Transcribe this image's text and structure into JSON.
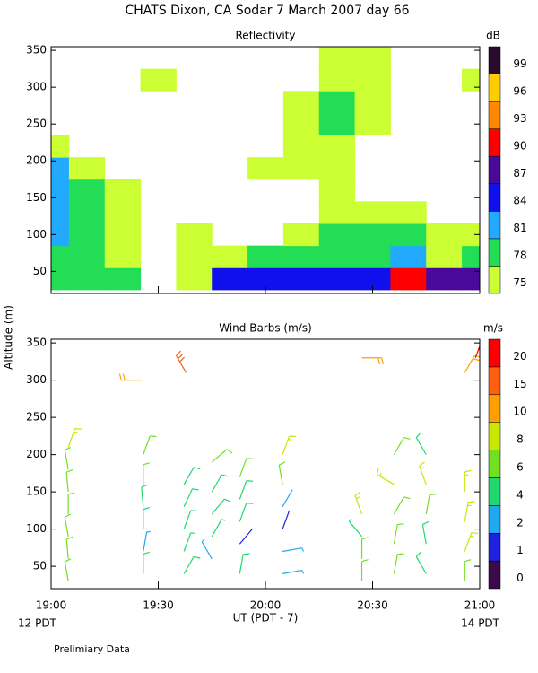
{
  "title": "CHATS Dixon, CA  Sodar   7 March 2007  day  66",
  "y_label": "Altitude (m)",
  "x_label": "UT  (PDT - 7)",
  "x_start_label": "12 PDT",
  "x_end_label": "14 PDT",
  "footnote": "Prelimiary Data",
  "chart_data": [
    {
      "type": "contour",
      "title": "Reflectivity",
      "xlim": [
        19,
        21
      ],
      "xticks": [
        19,
        19.5,
        20,
        20.5,
        21
      ],
      "ylim": [
        20,
        355
      ],
      "yticks": [
        50,
        100,
        150,
        200,
        250,
        300,
        350
      ],
      "colorbar": {
        "unit": "dB",
        "levels": [
          75,
          78,
          81,
          84,
          87,
          90,
          93,
          96,
          99
        ],
        "colors": [
          "#ccff33",
          "#22dd55",
          "#22aaff",
          "#1010ee",
          "#4a0a99",
          "#ff0000",
          "#ff8800",
          "#ffcc00",
          "#2a0a2a"
        ]
      },
      "x": [
        19,
        19.1667,
        19.3333,
        19.5,
        19.6667,
        19.8333,
        20,
        20.1667,
        20.3333,
        20.5,
        20.6667,
        20.8333,
        21
      ],
      "y": [
        40,
        70,
        100,
        130,
        160,
        190,
        220,
        250,
        280,
        310,
        340
      ],
      "z": [
        [
          78,
          78,
          78,
          null,
          75,
          84,
          84,
          84,
          84,
          84,
          90,
          87,
          87
        ],
        [
          78,
          78,
          75,
          null,
          75,
          75,
          78,
          78,
          78,
          78,
          81,
          75,
          78
        ],
        [
          81,
          78,
          75,
          null,
          75,
          null,
          null,
          75,
          78,
          78,
          78,
          75,
          75
        ],
        [
          81,
          78,
          75,
          null,
          null,
          null,
          null,
          null,
          75,
          75,
          75,
          null,
          null
        ],
        [
          81,
          78,
          75,
          null,
          null,
          null,
          null,
          null,
          75,
          null,
          null,
          null,
          null
        ],
        [
          81,
          75,
          null,
          null,
          null,
          null,
          75,
          75,
          75,
          null,
          null,
          null,
          null
        ],
        [
          75,
          null,
          null,
          null,
          null,
          null,
          null,
          75,
          75,
          null,
          null,
          null,
          null
        ],
        [
          null,
          null,
          null,
          null,
          null,
          null,
          null,
          75,
          78,
          75,
          null,
          null,
          null
        ],
        [
          null,
          null,
          null,
          null,
          null,
          null,
          null,
          75,
          78,
          75,
          null,
          null,
          null
        ],
        [
          null,
          null,
          null,
          75,
          null,
          null,
          null,
          null,
          75,
          75,
          null,
          null,
          75
        ],
        [
          null,
          null,
          null,
          null,
          null,
          null,
          null,
          null,
          75,
          75,
          null,
          null,
          null
        ]
      ]
    },
    {
      "type": "barbs",
      "title": "Wind Barbs (m/s)",
      "xlim": [
        19,
        21
      ],
      "xticks": [
        {
          "value": 19,
          "label": "19:00"
        },
        {
          "value": 19.5,
          "label": "19:30"
        },
        {
          "value": 20,
          "label": "20:00"
        },
        {
          "value": 20.5,
          "label": "20:30"
        },
        {
          "value": 21,
          "label": "21:00"
        }
      ],
      "ylim": [
        20,
        355
      ],
      "yticks": [
        50,
        100,
        150,
        200,
        250,
        300,
        350
      ],
      "colorbar": {
        "unit": "m/s",
        "levels": [
          0,
          1,
          2,
          4,
          6,
          8,
          10,
          15,
          20
        ],
        "colors": [
          "#3a0a4a",
          "#2020e0",
          "#20a8f0",
          "#20d870",
          "#70e020",
          "#c8e800",
          "#ffa000",
          "#ff6010",
          "#ff0000"
        ]
      },
      "time": [
        19.08,
        19.08,
        19.08,
        19.08,
        19.08,
        19.08,
        19.08,
        19.43,
        19.43,
        19.43,
        19.43,
        19.43,
        19.43,
        19.62,
        19.62,
        19.62,
        19.62,
        19.62,
        19.75,
        19.75,
        19.75,
        19.75,
        19.75,
        19.88,
        19.88,
        19.88,
        19.88,
        19.88,
        20.08,
        20.08,
        20.08,
        20.08,
        20.08,
        20.08,
        20.45,
        20.45,
        20.45,
        20.45,
        20.45,
        20.6,
        20.6,
        20.6,
        20.6,
        20.6,
        20.75,
        20.75,
        20.75,
        20.75,
        20.75,
        20.93,
        20.93,
        20.93,
        20.93,
        20.93,
        19.42,
        19.63,
        20.98
      ],
      "height": [
        30,
        60,
        90,
        120,
        150,
        180,
        210,
        40,
        70,
        100,
        130,
        160,
        200,
        40,
        70,
        100,
        130,
        160,
        60,
        90,
        120,
        150,
        190,
        40,
        80,
        110,
        140,
        170,
        40,
        70,
        100,
        130,
        160,
        200,
        30,
        60,
        90,
        120,
        330,
        40,
        80,
        120,
        160,
        200,
        40,
        80,
        120,
        160,
        200,
        30,
        70,
        110,
        150,
        310,
        300,
        310,
        330
      ],
      "speed": [
        6,
        6,
        6,
        6,
        6,
        7,
        8,
        5,
        3,
        5,
        5,
        6,
        7,
        5,
        4,
        5,
        5,
        5,
        3,
        4,
        5,
        5,
        7,
        5,
        1,
        5,
        5,
        6,
        3,
        3,
        1,
        2,
        6,
        8,
        6,
        6,
        4,
        8,
        10,
        6,
        6,
        7,
        8,
        7,
        5,
        5,
        6,
        8,
        5,
        6,
        8,
        8,
        8,
        10,
        10,
        15,
        20
      ],
      "direction": [
        350,
        355,
        350,
        0,
        355,
        350,
        20,
        0,
        10,
        0,
        355,
        0,
        20,
        30,
        20,
        20,
        25,
        30,
        330,
        30,
        40,
        30,
        50,
        10,
        40,
        20,
        20,
        20,
        80,
        80,
        20,
        30,
        350,
        20,
        0,
        0,
        320,
        340,
        90,
        10,
        10,
        30,
        300,
        30,
        330,
        350,
        10,
        340,
        330,
        0,
        20,
        10,
        0,
        30,
        270,
        330,
        20
      ]
    }
  ]
}
